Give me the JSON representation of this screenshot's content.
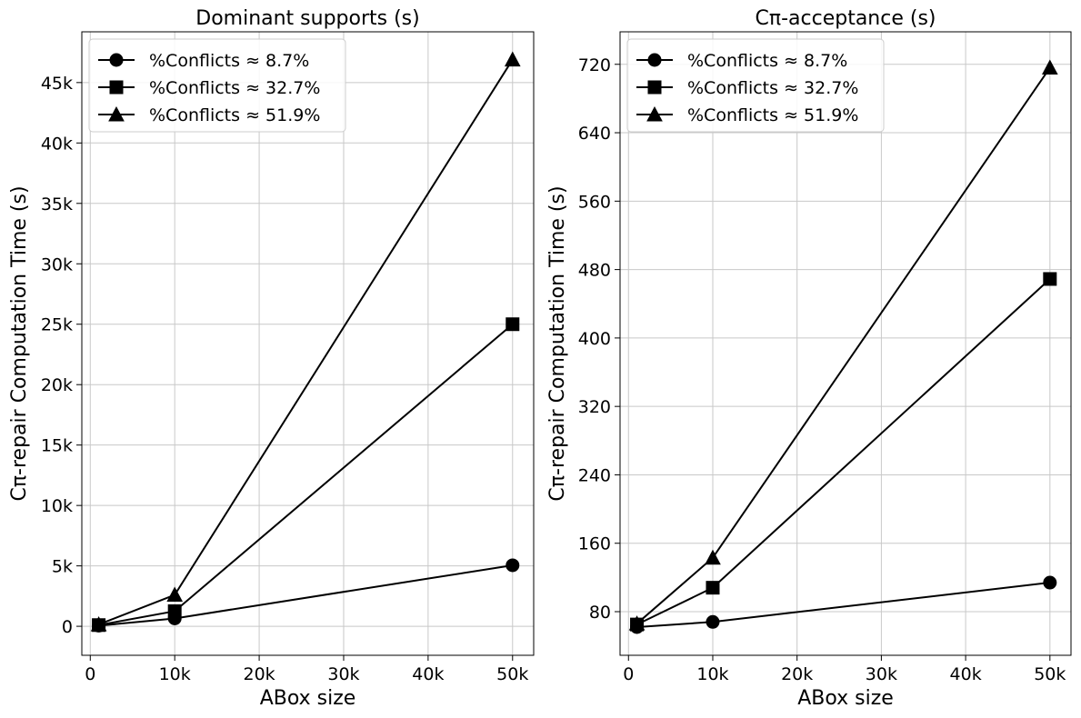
{
  "chart_data": [
    {
      "type": "line",
      "title": "Dominant supports (s)",
      "xlabel": "ABox size",
      "ylabel": "Cπ-repair Computation Time (s)",
      "x": [
        1000,
        10000,
        50000
      ],
      "xlim": [
        -1000,
        52500
      ],
      "ylim": [
        -2400,
        49200
      ],
      "xticks": [
        0,
        10000,
        20000,
        30000,
        40000,
        50000
      ],
      "xtick_labels": [
        "0",
        "10k",
        "20k",
        "30k",
        "40k",
        "50k"
      ],
      "yticks": [
        0,
        5000,
        10000,
        15000,
        20000,
        25000,
        30000,
        35000,
        40000,
        45000
      ],
      "ytick_labels": [
        "0",
        "5k",
        "10k",
        "15k",
        "20k",
        "25k",
        "30k",
        "35k",
        "40k",
        "45k"
      ],
      "grid": true,
      "legend_position": "upper-left",
      "series": [
        {
          "name": "%Conflicts ≈ 8.7%",
          "marker": "circle",
          "values": [
            50,
            650,
            5050
          ]
        },
        {
          "name": "%Conflicts ≈ 32.7%",
          "marker": "square",
          "values": [
            100,
            1250,
            25000
          ]
        },
        {
          "name": "%Conflicts ≈ 51.9%",
          "marker": "triangle",
          "values": [
            150,
            2600,
            46900
          ]
        }
      ]
    },
    {
      "type": "line",
      "title": "Cπ-acceptance (s)",
      "xlabel": "ABox size",
      "ylabel": "Cπ-repair Computation Time (s)",
      "x": [
        1000,
        10000,
        50000
      ],
      "xlim": [
        -1000,
        52500
      ],
      "ylim": [
        29,
        758
      ],
      "xticks": [
        0,
        10000,
        20000,
        30000,
        40000,
        50000
      ],
      "xtick_labels": [
        "0",
        "10k",
        "20k",
        "30k",
        "40k",
        "50k"
      ],
      "yticks": [
        80,
        160,
        240,
        320,
        400,
        480,
        560,
        640,
        720
      ],
      "ytick_labels": [
        "80",
        "160",
        "240",
        "320",
        "400",
        "480",
        "560",
        "640",
        "720"
      ],
      "grid": true,
      "legend_position": "upper-left",
      "series": [
        {
          "name": "%Conflicts ≈ 8.7%",
          "marker": "circle",
          "values": [
            62,
            68,
            114
          ]
        },
        {
          "name": "%Conflicts ≈ 32.7%",
          "marker": "square",
          "values": [
            65,
            108,
            469
          ]
        },
        {
          "name": "%Conflicts ≈ 51.9%",
          "marker": "triangle",
          "values": [
            66,
            143,
            716
          ]
        }
      ]
    }
  ]
}
